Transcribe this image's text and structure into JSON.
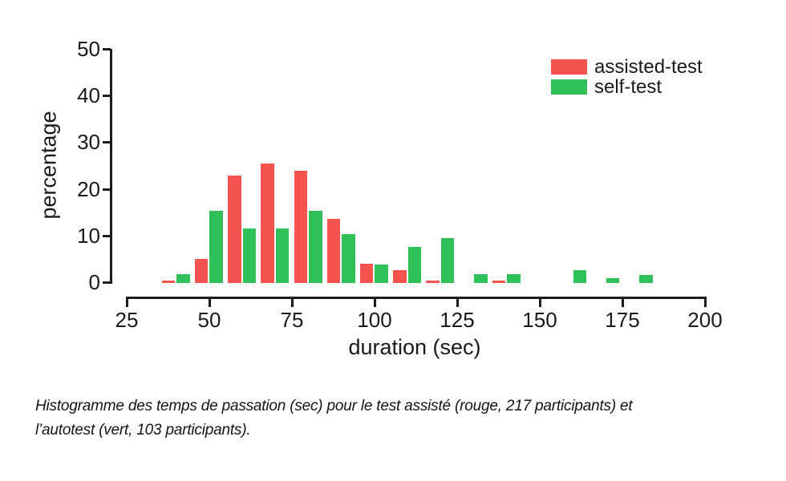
{
  "chart_data": {
    "type": "bar",
    "title": "",
    "xlabel": "duration (sec)",
    "ylabel": "percentage",
    "xlim": [
      25,
      200
    ],
    "ylim": [
      0,
      50
    ],
    "x_ticks": [
      25,
      50,
      75,
      100,
      125,
      150,
      175,
      200
    ],
    "y_ticks": [
      0,
      10,
      20,
      30,
      40,
      50
    ],
    "grid": false,
    "legend_position": "top-right",
    "bin_width_sec": 10,
    "categories": [
      40,
      50,
      60,
      70,
      80,
      90,
      100,
      110,
      120,
      130,
      140,
      150,
      160,
      170,
      180
    ],
    "series": [
      {
        "name": "assisted-test",
        "color": "#f5534d",
        "values": [
          0.5,
          5.1,
          23.0,
          25.6,
          24.1,
          13.8,
          4.1,
          2.8,
          0.5,
          0,
          0.5,
          0,
          0,
          0,
          0
        ]
      },
      {
        "name": "self-test",
        "color": "#2fc058",
        "values": [
          1.9,
          15.5,
          11.6,
          11.6,
          15.5,
          10.5,
          3.9,
          7.8,
          9.7,
          1.9,
          1.9,
          0,
          2.8,
          1.0,
          1.8
        ]
      }
    ]
  },
  "caption": {
    "line1": "Histogramme des temps de passation (sec) pour le test assisté (rouge, 217 participants) et",
    "line2": "l’autotest (vert, 103 participants)."
  }
}
